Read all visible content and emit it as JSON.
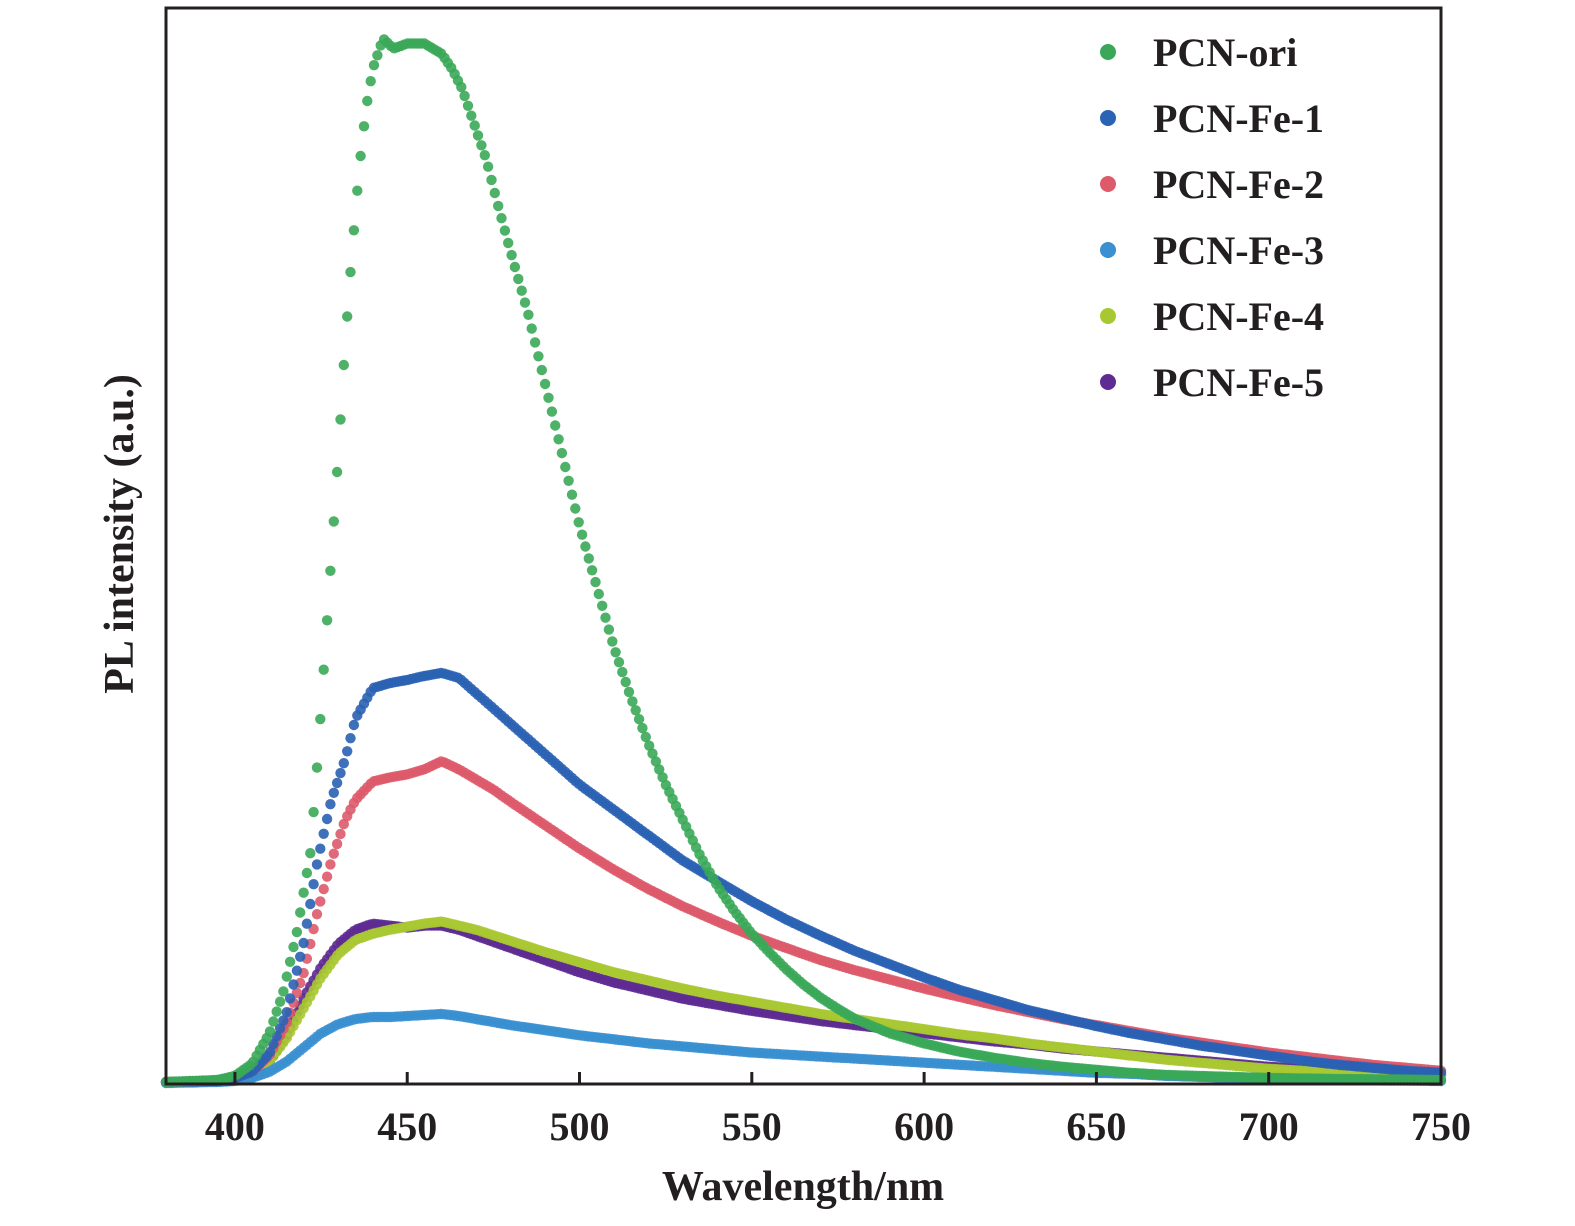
{
  "chart_data": {
    "type": "scatter",
    "xlabel": "Wavelength/nm",
    "ylabel": "PL intensity (a.u.)",
    "xlim": [
      380,
      750
    ],
    "ylim": [
      0,
      1.06
    ],
    "x_ticks": [
      400,
      450,
      500,
      550,
      600,
      650,
      700,
      750
    ],
    "x_tick_labels": [
      "400",
      "450",
      "500",
      "550",
      "600",
      "650",
      "700",
      "750"
    ],
    "y_ticks_shown": false,
    "legend_position": "top-right",
    "grid": false,
    "series": [
      {
        "name": "PCN-ori",
        "color": "#3aa858",
        "points": [
          [
            380,
            0.002
          ],
          [
            395,
            0.004
          ],
          [
            400,
            0.008
          ],
          [
            405,
            0.02
          ],
          [
            410,
            0.05
          ],
          [
            414,
            0.09
          ],
          [
            418,
            0.15
          ],
          [
            422,
            0.23
          ],
          [
            424,
            0.32
          ],
          [
            426,
            0.42
          ],
          [
            428,
            0.52
          ],
          [
            430,
            0.62
          ],
          [
            432,
            0.73
          ],
          [
            434,
            0.82
          ],
          [
            436,
            0.9
          ],
          [
            438,
            0.96
          ],
          [
            440,
            1.0
          ],
          [
            443,
            1.03
          ],
          [
            446,
            1.02
          ],
          [
            450,
            1.025
          ],
          [
            455,
            1.025
          ],
          [
            460,
            1.015
          ],
          [
            463,
            1.0
          ],
          [
            466,
            0.98
          ],
          [
            470,
            0.94
          ],
          [
            473,
            0.91
          ],
          [
            476,
            0.87
          ],
          [
            480,
            0.82
          ],
          [
            485,
            0.76
          ],
          [
            490,
            0.69
          ],
          [
            495,
            0.62
          ],
          [
            500,
            0.55
          ],
          [
            505,
            0.49
          ],
          [
            510,
            0.43
          ],
          [
            515,
            0.38
          ],
          [
            520,
            0.335
          ],
          [
            525,
            0.295
          ],
          [
            530,
            0.26
          ],
          [
            535,
            0.225
          ],
          [
            540,
            0.195
          ],
          [
            545,
            0.17
          ],
          [
            550,
            0.148
          ],
          [
            555,
            0.13
          ],
          [
            560,
            0.113
          ],
          [
            565,
            0.098
          ],
          [
            570,
            0.085
          ],
          [
            575,
            0.074
          ],
          [
            580,
            0.064
          ],
          [
            590,
            0.05
          ],
          [
            600,
            0.04
          ],
          [
            610,
            0.032
          ],
          [
            620,
            0.026
          ],
          [
            630,
            0.021
          ],
          [
            640,
            0.017
          ],
          [
            650,
            0.014
          ],
          [
            660,
            0.011
          ],
          [
            670,
            0.009
          ],
          [
            680,
            0.008
          ],
          [
            690,
            0.007
          ],
          [
            700,
            0.006
          ],
          [
            720,
            0.005
          ],
          [
            750,
            0.004
          ]
        ]
      },
      {
        "name": "PCN-Fe-1",
        "color": "#2a62b4",
        "points": [
          [
            380,
            0.002
          ],
          [
            395,
            0.003
          ],
          [
            400,
            0.006
          ],
          [
            405,
            0.012
          ],
          [
            410,
            0.03
          ],
          [
            415,
            0.07
          ],
          [
            420,
            0.14
          ],
          [
            424,
            0.22
          ],
          [
            428,
            0.28
          ],
          [
            432,
            0.32
          ],
          [
            435,
            0.36
          ],
          [
            440,
            0.39
          ],
          [
            445,
            0.395
          ],
          [
            450,
            0.398
          ],
          [
            455,
            0.402
          ],
          [
            460,
            0.405
          ],
          [
            465,
            0.4
          ],
          [
            470,
            0.385
          ],
          [
            475,
            0.37
          ],
          [
            480,
            0.355
          ],
          [
            490,
            0.325
          ],
          [
            500,
            0.295
          ],
          [
            510,
            0.27
          ],
          [
            520,
            0.245
          ],
          [
            530,
            0.22
          ],
          [
            540,
            0.2
          ],
          [
            550,
            0.18
          ],
          [
            560,
            0.162
          ],
          [
            570,
            0.146
          ],
          [
            580,
            0.131
          ],
          [
            590,
            0.118
          ],
          [
            600,
            0.105
          ],
          [
            610,
            0.093
          ],
          [
            620,
            0.083
          ],
          [
            630,
            0.073
          ],
          [
            640,
            0.065
          ],
          [
            650,
            0.057
          ],
          [
            660,
            0.05
          ],
          [
            670,
            0.044
          ],
          [
            680,
            0.038
          ],
          [
            690,
            0.033
          ],
          [
            700,
            0.028
          ],
          [
            710,
            0.023
          ],
          [
            720,
            0.019
          ],
          [
            730,
            0.016
          ],
          [
            740,
            0.013
          ],
          [
            750,
            0.011
          ]
        ]
      },
      {
        "name": "PCN-Fe-2",
        "color": "#dd5a6a",
        "points": [
          [
            380,
            0.002
          ],
          [
            395,
            0.003
          ],
          [
            400,
            0.006
          ],
          [
            405,
            0.012
          ],
          [
            410,
            0.028
          ],
          [
            415,
            0.06
          ],
          [
            420,
            0.11
          ],
          [
            424,
            0.17
          ],
          [
            428,
            0.22
          ],
          [
            432,
            0.26
          ],
          [
            435,
            0.28
          ],
          [
            440,
            0.298
          ],
          [
            445,
            0.302
          ],
          [
            450,
            0.305
          ],
          [
            455,
            0.31
          ],
          [
            460,
            0.318
          ],
          [
            465,
            0.31
          ],
          [
            470,
            0.3
          ],
          [
            475,
            0.29
          ],
          [
            480,
            0.278
          ],
          [
            490,
            0.255
          ],
          [
            500,
            0.232
          ],
          [
            510,
            0.211
          ],
          [
            520,
            0.192
          ],
          [
            530,
            0.175
          ],
          [
            540,
            0.16
          ],
          [
            550,
            0.146
          ],
          [
            560,
            0.134
          ],
          [
            570,
            0.122
          ],
          [
            580,
            0.112
          ],
          [
            590,
            0.103
          ],
          [
            600,
            0.094
          ],
          [
            610,
            0.086
          ],
          [
            620,
            0.078
          ],
          [
            630,
            0.071
          ],
          [
            640,
            0.064
          ],
          [
            650,
            0.058
          ],
          [
            660,
            0.052
          ],
          [
            670,
            0.046
          ],
          [
            680,
            0.041
          ],
          [
            690,
            0.036
          ],
          [
            700,
            0.031
          ],
          [
            710,
            0.027
          ],
          [
            720,
            0.023
          ],
          [
            730,
            0.019
          ],
          [
            740,
            0.016
          ],
          [
            750,
            0.013
          ]
        ]
      },
      {
        "name": "PCN-Fe-3",
        "color": "#3a90d0",
        "points": [
          [
            380,
            0.001
          ],
          [
            395,
            0.002
          ],
          [
            400,
            0.003
          ],
          [
            405,
            0.006
          ],
          [
            410,
            0.012
          ],
          [
            415,
            0.022
          ],
          [
            420,
            0.036
          ],
          [
            425,
            0.05
          ],
          [
            430,
            0.059
          ],
          [
            435,
            0.064
          ],
          [
            440,
            0.066
          ],
          [
            445,
            0.066
          ],
          [
            450,
            0.067
          ],
          [
            455,
            0.068
          ],
          [
            460,
            0.069
          ],
          [
            465,
            0.067
          ],
          [
            470,
            0.064
          ],
          [
            480,
            0.058
          ],
          [
            490,
            0.053
          ],
          [
            500,
            0.048
          ],
          [
            510,
            0.044
          ],
          [
            520,
            0.04
          ],
          [
            530,
            0.037
          ],
          [
            540,
            0.034
          ],
          [
            550,
            0.031
          ],
          [
            560,
            0.029
          ],
          [
            570,
            0.027
          ],
          [
            580,
            0.025
          ],
          [
            590,
            0.023
          ],
          [
            600,
            0.021
          ],
          [
            610,
            0.019
          ],
          [
            620,
            0.017
          ],
          [
            630,
            0.015
          ],
          [
            640,
            0.013
          ],
          [
            650,
            0.011
          ],
          [
            660,
            0.01
          ],
          [
            670,
            0.008
          ],
          [
            680,
            0.007
          ],
          [
            690,
            0.006
          ],
          [
            700,
            0.005
          ],
          [
            720,
            0.004
          ],
          [
            750,
            0.003
          ]
        ]
      },
      {
        "name": "PCN-Fe-4",
        "color": "#a8c832",
        "points": [
          [
            380,
            0.002
          ],
          [
            395,
            0.003
          ],
          [
            400,
            0.005
          ],
          [
            405,
            0.01
          ],
          [
            410,
            0.022
          ],
          [
            415,
            0.045
          ],
          [
            420,
            0.075
          ],
          [
            425,
            0.105
          ],
          [
            430,
            0.128
          ],
          [
            435,
            0.142
          ],
          [
            440,
            0.148
          ],
          [
            445,
            0.152
          ],
          [
            450,
            0.155
          ],
          [
            455,
            0.158
          ],
          [
            460,
            0.16
          ],
          [
            465,
            0.156
          ],
          [
            470,
            0.152
          ],
          [
            480,
            0.141
          ],
          [
            490,
            0.13
          ],
          [
            500,
            0.12
          ],
          [
            510,
            0.11
          ],
          [
            520,
            0.102
          ],
          [
            530,
            0.094
          ],
          [
            540,
            0.087
          ],
          [
            550,
            0.081
          ],
          [
            560,
            0.075
          ],
          [
            570,
            0.069
          ],
          [
            580,
            0.064
          ],
          [
            590,
            0.059
          ],
          [
            600,
            0.054
          ],
          [
            610,
            0.049
          ],
          [
            620,
            0.045
          ],
          [
            630,
            0.04
          ],
          [
            640,
            0.036
          ],
          [
            650,
            0.032
          ],
          [
            660,
            0.028
          ],
          [
            670,
            0.024
          ],
          [
            680,
            0.021
          ],
          [
            690,
            0.018
          ],
          [
            700,
            0.015
          ],
          [
            720,
            0.011
          ],
          [
            750,
            0.008
          ]
        ]
      },
      {
        "name": "PCN-Fe-5",
        "color": "#5e2b92",
        "points": [
          [
            380,
            0.002
          ],
          [
            395,
            0.003
          ],
          [
            400,
            0.005
          ],
          [
            405,
            0.01
          ],
          [
            410,
            0.022
          ],
          [
            415,
            0.048
          ],
          [
            420,
            0.085
          ],
          [
            425,
            0.115
          ],
          [
            430,
            0.138
          ],
          [
            435,
            0.152
          ],
          [
            440,
            0.158
          ],
          [
            445,
            0.156
          ],
          [
            450,
            0.154
          ],
          [
            455,
            0.156
          ],
          [
            460,
            0.156
          ],
          [
            465,
            0.152
          ],
          [
            470,
            0.146
          ],
          [
            480,
            0.134
          ],
          [
            490,
            0.122
          ],
          [
            500,
            0.11
          ],
          [
            510,
            0.1
          ],
          [
            520,
            0.092
          ],
          [
            530,
            0.084
          ],
          [
            540,
            0.078
          ],
          [
            550,
            0.072
          ],
          [
            560,
            0.067
          ],
          [
            570,
            0.062
          ],
          [
            580,
            0.058
          ],
          [
            590,
            0.054
          ],
          [
            600,
            0.05
          ],
          [
            610,
            0.046
          ],
          [
            620,
            0.042
          ],
          [
            630,
            0.039
          ],
          [
            640,
            0.035
          ],
          [
            650,
            0.032
          ],
          [
            660,
            0.029
          ],
          [
            670,
            0.026
          ],
          [
            680,
            0.023
          ],
          [
            690,
            0.02
          ],
          [
            700,
            0.017
          ],
          [
            720,
            0.013
          ],
          [
            750,
            0.009
          ]
        ]
      }
    ]
  }
}
